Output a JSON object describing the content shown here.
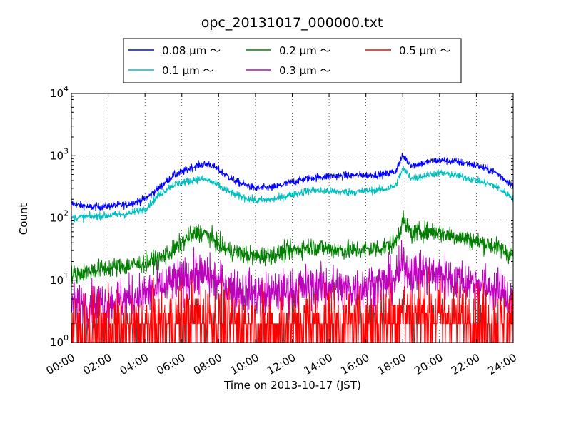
{
  "chart_data": {
    "type": "line",
    "title": "opc_20131017_000000.txt",
    "xlabel": "Time on 2013-10-17 (JST)",
    "ylabel": "Count",
    "xlim": [
      "00:00",
      "24:00"
    ],
    "x_ticks": [
      "00:00",
      "02:00",
      "04:00",
      "06:00",
      "08:00",
      "10:00",
      "12:00",
      "14:00",
      "16:00",
      "18:00",
      "20:00",
      "22:00",
      "24:00"
    ],
    "y_scale": "log",
    "ylim": [
      1,
      10000
    ],
    "y_ticks": [
      {
        "base": "10",
        "exp": "0"
      },
      {
        "base": "10",
        "exp": "1"
      },
      {
        "base": "10",
        "exp": "2"
      },
      {
        "base": "10",
        "exp": "3"
      },
      {
        "base": "10",
        "exp": "4"
      }
    ],
    "grid": true,
    "legend_position": "top-center (above plot)",
    "x_hours": [
      0,
      1,
      2,
      3,
      4,
      4.8,
      5.5,
      6,
      6.5,
      7,
      7.5,
      8,
      8.5,
      9,
      10,
      11,
      12,
      13,
      14,
      15,
      16,
      17,
      17.6,
      18,
      18.5,
      19,
      19.5,
      20,
      21,
      22,
      23,
      24
    ],
    "series": [
      {
        "name": "0.08 μm ～",
        "color": "#0000ff",
        "noise": 0.06,
        "values": [
          170,
          150,
          155,
          165,
          200,
          310,
          480,
          540,
          640,
          720,
          740,
          590,
          470,
          380,
          300,
          310,
          380,
          440,
          470,
          480,
          490,
          500,
          560,
          1000,
          700,
          750,
          800,
          850,
          800,
          700,
          550,
          330
        ]
      },
      {
        "name": "0.1 μm ～",
        "color": "#00bfbf",
        "noise": 0.06,
        "values": [
          100,
          105,
          110,
          115,
          140,
          240,
          340,
          370,
          400,
          430,
          400,
          330,
          270,
          230,
          190,
          200,
          240,
          280,
          270,
          260,
          270,
          290,
          330,
          620,
          430,
          460,
          510,
          530,
          480,
          400,
          330,
          210
        ]
      },
      {
        "name": "0.2 μm ～",
        "color": "#008000",
        "noise": 0.15,
        "values": [
          12,
          14,
          16,
          17,
          19,
          22,
          30,
          40,
          52,
          60,
          50,
          38,
          30,
          28,
          24,
          26,
          30,
          35,
          32,
          30,
          31,
          34,
          40,
          90,
          55,
          60,
          62,
          58,
          50,
          42,
          35,
          25
        ]
      },
      {
        "name": "0.3 μm ～",
        "color": "#bf00bf",
        "noise": 0.35,
        "values": [
          4,
          4,
          4.5,
          5,
          6,
          7,
          9,
          10,
          12,
          13,
          11,
          9,
          8,
          7,
          6,
          6,
          7,
          8,
          8,
          7,
          8,
          9,
          10,
          18,
          13,
          13,
          13,
          12,
          10,
          9,
          7,
          5
        ]
      },
      {
        "name": "0.5 μm ～",
        "color": "#ff0000",
        "noise": 0.6,
        "values": [
          1.5,
          1.5,
          1.5,
          1.5,
          1.6,
          1.7,
          2,
          2.2,
          2.4,
          2.5,
          2.3,
          2,
          1.9,
          1.8,
          1.7,
          1.7,
          1.8,
          2,
          2,
          1.9,
          2,
          2.2,
          2.4,
          3.5,
          2.8,
          2.8,
          2.8,
          2.7,
          2.4,
          2.2,
          2,
          1.8
        ]
      }
    ]
  }
}
